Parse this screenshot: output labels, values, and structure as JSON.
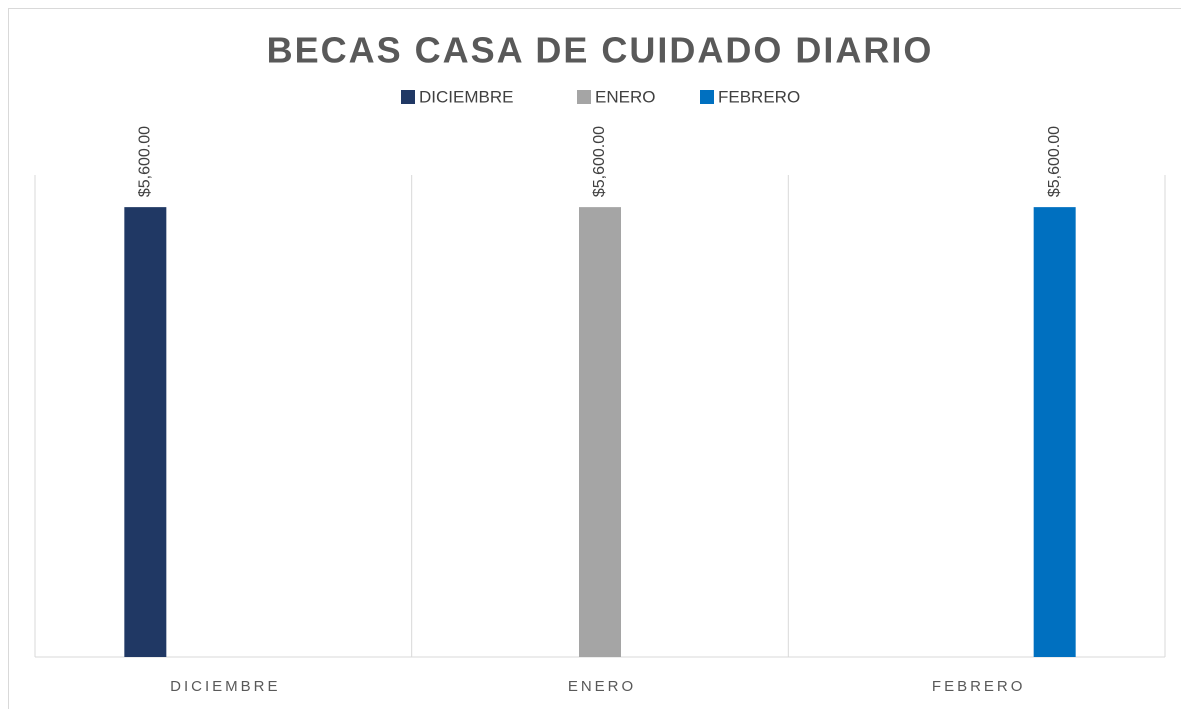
{
  "chart_data": {
    "type": "bar",
    "title": "BECAS CASA DE CUIDADO DIARIO",
    "categories": [
      "DICIEMBRE",
      "ENERO",
      "FEBRERO"
    ],
    "series": [
      {
        "name": "DICIEMBRE",
        "color": "#203864",
        "values": [
          5600,
          null,
          null
        ],
        "value_labels": [
          "$5,600.00",
          null,
          null
        ]
      },
      {
        "name": "ENERO",
        "color": "#a5a5a5",
        "values": [
          null,
          5600,
          null
        ],
        "value_labels": [
          null,
          "$5,600.00",
          null
        ]
      },
      {
        "name": "FEBRERO",
        "color": "#0070c0",
        "values": [
          null,
          null,
          5600
        ],
        "value_labels": [
          null,
          null,
          "$5,600.00"
        ]
      }
    ],
    "ylim": [
      0,
      6000
    ],
    "legend": "top"
  }
}
